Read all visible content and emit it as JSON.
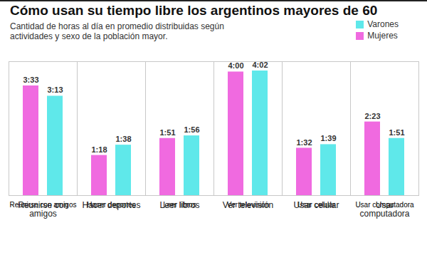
{
  "chart_data": {
    "type": "bar",
    "title": "Cómo usan su tiempo libre los argentinos mayores de 60",
    "subtitle": "Cantidad de horas al día en promedio distribuidas según actividades y sexo de la población mayor.",
    "categories": [
      "Reunirse con amigos",
      "Hacer deportes",
      "Leer libros",
      "Ver televisión",
      "Usar celular",
      "Usar computadora"
    ],
    "series": [
      {
        "name": "Mujeres",
        "color": "#f06ae0",
        "values": [
          213,
          78,
          111,
          240,
          92,
          143
        ],
        "value_labels": [
          "3:33",
          "1:18",
          "1:51",
          "4:00",
          "1:32",
          "2:23"
        ]
      },
      {
        "name": "Varones",
        "color": "#5fe8ea",
        "values": [
          193,
          98,
          116,
          242,
          99,
          111
        ],
        "value_labels": [
          "3:13",
          "1:38",
          "1:56",
          "4:02",
          "1:39",
          "1:51"
        ]
      }
    ],
    "ylim": [
      0,
      260
    ],
    "yticks": [],
    "data_labels": true,
    "tick_labels": "x",
    "legend": "top-right",
    "grid": false
  }
}
